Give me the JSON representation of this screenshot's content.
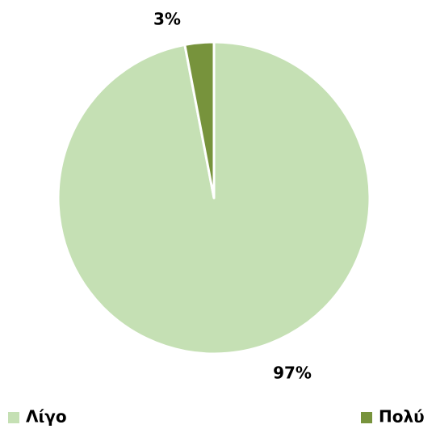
{
  "chart_data": {
    "type": "pie",
    "categories": [
      "Λίγο",
      "Πολύ"
    ],
    "values": [
      97,
      3
    ],
    "value_labels": [
      "97%",
      "3%"
    ],
    "colors": [
      "#c5e0b4",
      "#77933c"
    ],
    "legend": "bottom"
  }
}
